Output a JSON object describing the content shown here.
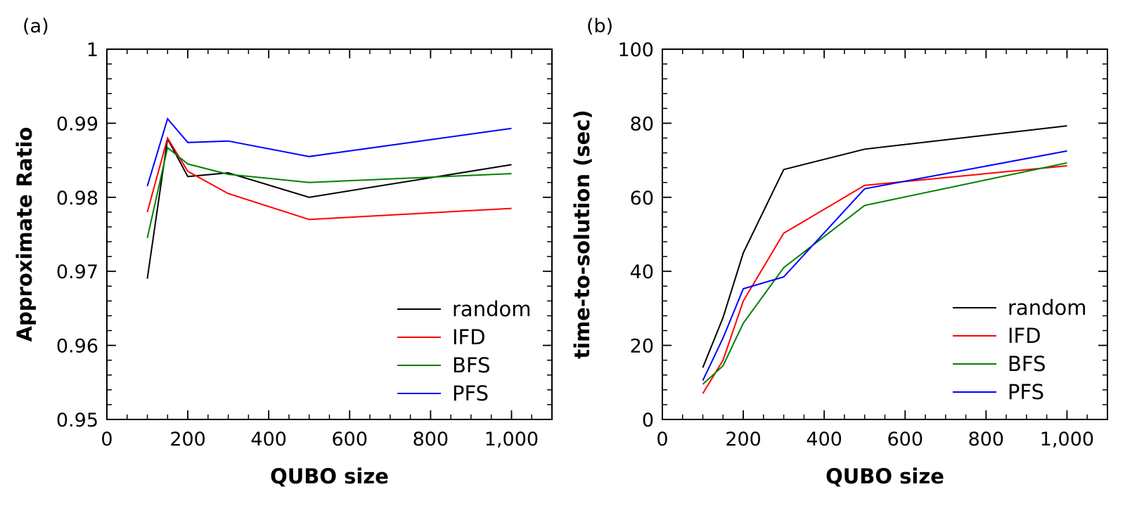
{
  "chart_data": [
    {
      "panel_label": "(a)",
      "type": "line",
      "xlabel": "QUBO size",
      "ylabel": "Approximate Ratio",
      "xlim": [
        0,
        1100
      ],
      "ylim": [
        0.95,
        1.0
      ],
      "x_ticks": [
        0,
        200,
        400,
        600,
        800,
        1000
      ],
      "x_tick_labels": [
        "0",
        "200",
        "400",
        "600",
        "800",
        "1,000"
      ],
      "y_ticks": [
        0.95,
        0.96,
        0.97,
        0.98,
        0.99,
        1.0
      ],
      "y_tick_labels": [
        "0.95",
        "0.96",
        "0.97",
        "0.98",
        "0.99",
        "1"
      ],
      "legend_position": "bottom-right",
      "x": [
        100,
        150,
        200,
        300,
        500,
        1000
      ],
      "series": [
        {
          "name": "random",
          "color": "#000000",
          "values": [
            0.969,
            0.9879,
            0.9828,
            0.9833,
            0.98,
            0.9844
          ]
        },
        {
          "name": "IFD",
          "color": "#ff0000",
          "values": [
            0.978,
            0.988,
            0.9835,
            0.9805,
            0.977,
            0.9785
          ]
        },
        {
          "name": "BFS",
          "color": "#008000",
          "values": [
            0.9745,
            0.9867,
            0.9845,
            0.9831,
            0.982,
            0.9832
          ]
        },
        {
          "name": "PFS",
          "color": "#0000ff",
          "values": [
            0.9815,
            0.9906,
            0.9874,
            0.9876,
            0.9855,
            0.9893
          ]
        }
      ]
    },
    {
      "panel_label": "(b)",
      "type": "line",
      "xlabel": "QUBO size",
      "ylabel": "time-to-solution (sec)",
      "xlim": [
        0,
        1100
      ],
      "ylim": [
        0,
        100
      ],
      "x_ticks": [
        0,
        200,
        400,
        600,
        800,
        1000
      ],
      "x_tick_labels": [
        "0",
        "200",
        "400",
        "600",
        "800",
        "1,000"
      ],
      "y_ticks": [
        0,
        20,
        40,
        60,
        80,
        100
      ],
      "y_tick_labels": [
        "0",
        "20",
        "40",
        "60",
        "80",
        "100"
      ],
      "legend_position": "bottom-right",
      "x": [
        100,
        150,
        200,
        300,
        500,
        1000
      ],
      "series": [
        {
          "name": "random",
          "color": "#000000",
          "values": [
            14,
            27.5,
            45,
            67.5,
            73,
            79.3
          ]
        },
        {
          "name": "IFD",
          "color": "#ff0000",
          "values": [
            7,
            16,
            32,
            50.3,
            63.2,
            68.5
          ]
        },
        {
          "name": "BFS",
          "color": "#008000",
          "values": [
            9.5,
            14.5,
            26,
            41,
            57.8,
            69.3
          ]
        },
        {
          "name": "PFS",
          "color": "#0000ff",
          "values": [
            10.5,
            22,
            35.3,
            38.5,
            62.3,
            72.5
          ]
        }
      ]
    }
  ]
}
